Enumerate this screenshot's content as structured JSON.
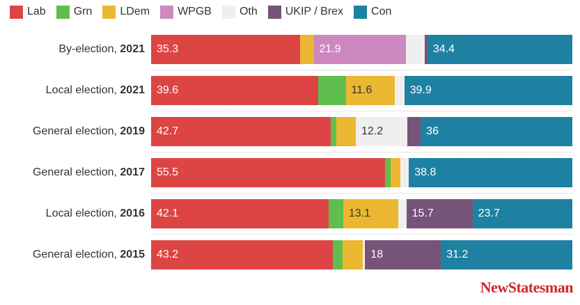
{
  "chart_data": {
    "type": "bar",
    "orientation": "horizontal",
    "stacked": true,
    "xlim": [
      0,
      100
    ],
    "legend_placement": "top-left",
    "series_order": [
      "Lab",
      "Grn",
      "LDem",
      "WPGB",
      "Oth",
      "UKIP / Brex",
      "Con"
    ],
    "colors": {
      "Lab": "#dd4444",
      "Grn": "#5fbe4e",
      "LDem": "#ecb730",
      "WPGB": "#cc88bf",
      "Oth": "#efefef",
      "UKIP / Brex": "#765379",
      "Con": "#1f81a2"
    },
    "label_colors": {
      "Lab": "#ffffff",
      "Grn": "#ffffff",
      "LDem": "#333333",
      "WPGB": "#ffffff",
      "Oth": "#333333",
      "UKIP / Brex": "#ffffff",
      "Con": "#ffffff"
    },
    "rows": [
      {
        "name": "By-election, ",
        "year": "2021",
        "values": {
          "Lab": 35.3,
          "Grn": 0,
          "LDem": 3.3,
          "WPGB": 21.9,
          "Oth": 4.5,
          "UKIP / Brex": 0.6,
          "Con": 34.4
        }
      },
      {
        "name": "Local election, ",
        "year": "2021",
        "values": {
          "Lab": 39.6,
          "Grn": 6.6,
          "LDem": 11.6,
          "WPGB": 0,
          "Oth": 2.3,
          "UKIP / Brex": 0,
          "Con": 39.9
        }
      },
      {
        "name": "General election, ",
        "year": "2019",
        "values": {
          "Lab": 42.7,
          "Grn": 1.3,
          "LDem": 4.6,
          "WPGB": 0,
          "Oth": 12.2,
          "UKIP / Brex": 3.2,
          "Con": 36
        }
      },
      {
        "name": "General election, ",
        "year": "2017",
        "values": {
          "Lab": 55.5,
          "Grn": 1.3,
          "LDem": 2.3,
          "WPGB": 0,
          "Oth": 2.1,
          "UKIP / Brex": 0,
          "Con": 38.8
        }
      },
      {
        "name": "Local election, ",
        "year": "2016",
        "values": {
          "Lab": 42.1,
          "Grn": 3.5,
          "LDem": 13.1,
          "WPGB": 0,
          "Oth": 1.9,
          "UKIP / Brex": 15.7,
          "Con": 23.7
        }
      },
      {
        "name": "General election, ",
        "year": "2015",
        "values": {
          "Lab": 43.2,
          "Grn": 2.3,
          "LDem": 4.8,
          "WPGB": 0,
          "Oth": 0.5,
          "UKIP / Brex": 18,
          "Con": 31.2
        }
      }
    ],
    "label_threshold": 10
  },
  "branding": {
    "logo": "NewStatesman"
  }
}
